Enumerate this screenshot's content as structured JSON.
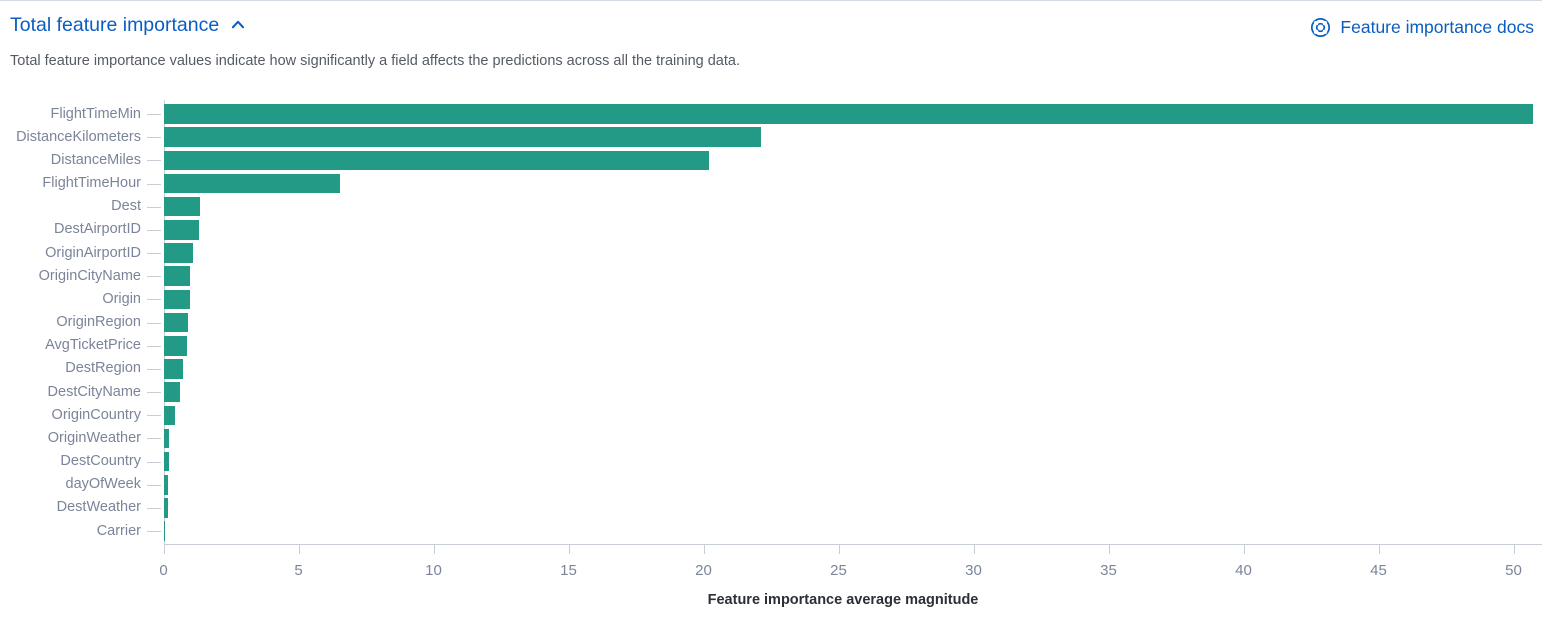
{
  "header": {
    "title": "Total feature importance",
    "collapse_icon": "chevron-up-icon",
    "docs_link": {
      "icon": "lifebuoy-icon",
      "label": "Feature importance docs"
    }
  },
  "description": "Total feature importance values indicate how significantly a field affects the predictions across all the training data.",
  "colors": {
    "bar": "#229a86",
    "link_blue": "#0a5dc2",
    "axis_line": "#c9cdd6",
    "tick_label": "#7b8499",
    "category_label": "#7b8499",
    "axis_title_text": "#2b2f36",
    "description_text": "#545b64"
  },
  "chart_data": {
    "type": "bar",
    "orientation": "horizontal",
    "title": "",
    "xlabel": "Feature importance average magnitude",
    "ylabel": "",
    "categories": [
      "FlightTimeMin",
      "DistanceKilometers",
      "DistanceMiles",
      "FlightTimeHour",
      "Dest",
      "DestAirportID",
      "OriginAirportID",
      "OriginCityName",
      "Origin",
      "OriginRegion",
      "AvgTicketPrice",
      "DestRegion",
      "DestCityName",
      "OriginCountry",
      "OriginWeather",
      "DestCountry",
      "dayOfWeek",
      "DestWeather",
      "Carrier"
    ],
    "values": [
      50.7,
      22.1,
      20.2,
      6.5,
      1.35,
      1.3,
      1.06,
      0.97,
      0.95,
      0.9,
      0.85,
      0.7,
      0.6,
      0.42,
      0.2,
      0.17,
      0.16,
      0.13,
      0.05
    ],
    "xticks": [
      0,
      5,
      10,
      15,
      20,
      25,
      30,
      35,
      40,
      45,
      50
    ],
    "xlim": [
      0,
      51.1
    ],
    "grid": false,
    "legend": false
  }
}
